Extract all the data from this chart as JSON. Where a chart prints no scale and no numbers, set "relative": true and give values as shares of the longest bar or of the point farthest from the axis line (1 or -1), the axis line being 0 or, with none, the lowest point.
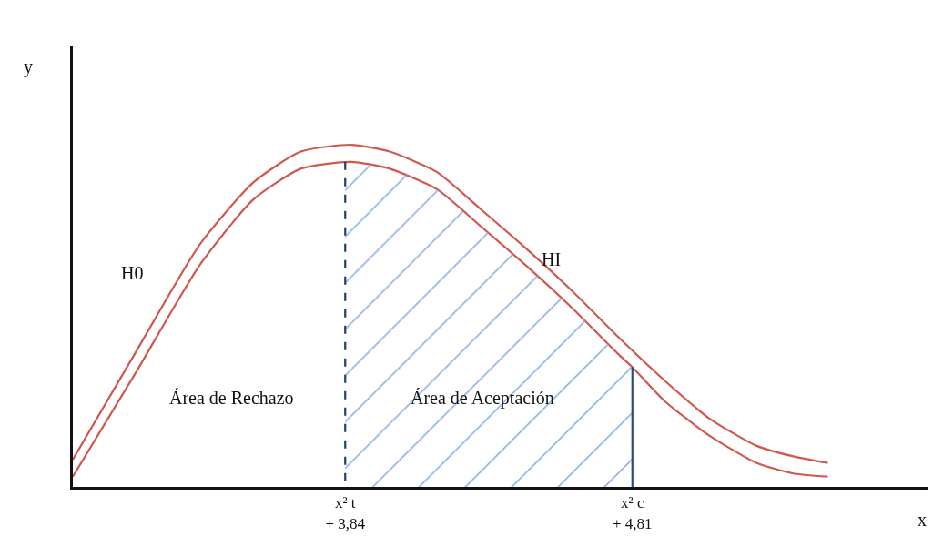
{
  "chart_data": {
    "type": "line",
    "relative": true,
    "xlabel": "x",
    "ylabel": "y",
    "grid": false,
    "xlim": [
      2.92,
      5.81
    ],
    "xticks": [
      {
        "value": 3.84,
        "label": "x² t\n+ 3,84"
      },
      {
        "value": 4.81,
        "label": "x² c\n+ 4,81"
      }
    ],
    "series": [
      {
        "color": "#d0584f",
        "x": [
          2.92,
          3.13,
          3.35,
          3.53,
          3.69,
          3.86,
          3.99,
          4.15,
          4.3,
          4.46,
          4.61,
          4.76,
          4.92,
          5.07,
          5.23,
          5.35,
          5.47
        ],
        "values": [
          0.08,
          0.39,
          0.71,
          0.89,
          0.98,
          1,
          0.98,
          0.92,
          0.81,
          0.69,
          0.57,
          0.44,
          0.31,
          0.2,
          0.12,
          0.09,
          0.07
        ]
      },
      {
        "color": "#d0584f",
        "x": [
          2.92,
          3.13,
          3.35,
          3.53,
          3.69,
          3.86,
          3.99,
          4.15,
          4.3,
          4.46,
          4.61,
          4.76,
          4.81,
          4.92,
          5.07,
          5.23,
          5.35,
          5.47
        ],
        "values": [
          0.03,
          0.33,
          0.65,
          0.84,
          0.93,
          0.95,
          0.93,
          0.87,
          0.76,
          0.64,
          0.52,
          0.39,
          0.35,
          0.25,
          0.15,
          0.07,
          0.04,
          0.03
        ]
      },
      {
        "type": "area",
        "color": "#7ea6dc",
        "x": [
          3.84,
          3.99,
          4.15,
          4.3,
          4.46,
          4.61,
          4.76,
          4.81
        ],
        "values": [
          0.95,
          0.93,
          0.87,
          0.76,
          0.64,
          0.52,
          0.39,
          0.35
        ]
      },
      {
        "color": "#1f3f75",
        "line_style": "dashed",
        "x": [
          3.84,
          3.84
        ],
        "values": [
          0.95,
          0
        ]
      },
      {
        "color": "#2d4a7a",
        "line_style": "solid",
        "x": [
          4.81,
          4.81
        ],
        "values": [
          0,
          0.35
        ]
      }
    ],
    "annotations": [
      "H0",
      "HI",
      "Área de Rechazo",
      "Área de Aceptación"
    ]
  }
}
